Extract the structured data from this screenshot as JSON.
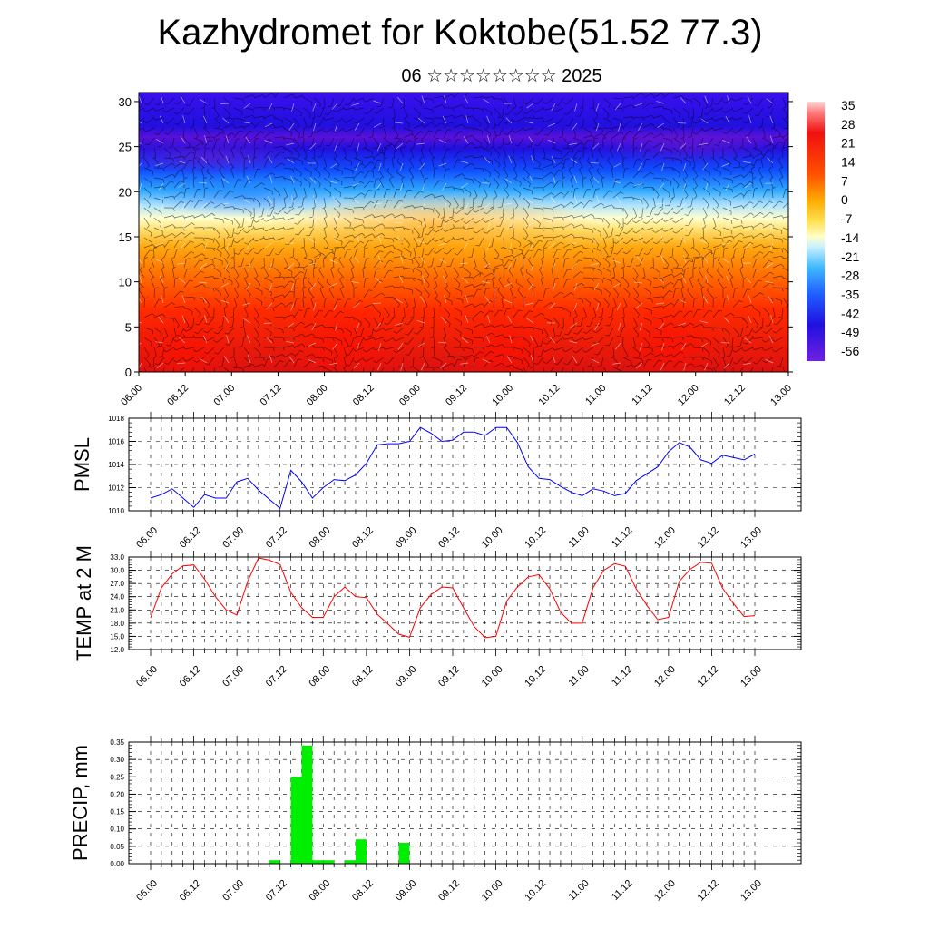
{
  "title": "Kazhydromet for Koktobe(51.52 77.3)",
  "subtitle": "06 ☆☆☆☆☆☆☆☆ 2025",
  "time_labels": [
    "06.00",
    "06.12",
    "07.00",
    "07.12",
    "08.00",
    "08.12",
    "09.00",
    "09.12",
    "10.00",
    "10.12",
    "11.00",
    "11.12",
    "12.00",
    "12.12",
    "13.00"
  ],
  "colorbar": {
    "labels": [
      "35",
      "28",
      "21",
      "14",
      "7",
      "0",
      "-7",
      "-14",
      "-21",
      "-28",
      "-35",
      "-42",
      "-49",
      "-56"
    ]
  },
  "chart_data": [
    {
      "type": "heatmap",
      "name": "cross-section",
      "y_ticks": [
        0,
        5,
        10,
        15,
        20,
        25,
        30
      ],
      "ylim": [
        0,
        31
      ],
      "x_categories": [
        "06.00",
        "06.12",
        "07.00",
        "07.12",
        "08.00",
        "08.12",
        "09.00",
        "09.12",
        "10.00",
        "10.12",
        "11.00",
        "11.12",
        "12.00",
        "12.12",
        "13.00"
      ],
      "color_scale": [
        35,
        28,
        21,
        14,
        7,
        0,
        -7,
        -14,
        -21,
        -28,
        -35,
        -42,
        -49,
        -56
      ],
      "approx_isolevel_heights": {
        "0": 16.5,
        "-14": 16,
        "-28": 20,
        "-42": 22,
        "-56": 25
      }
    },
    {
      "type": "line",
      "ylabel": "PMSL",
      "ylim": [
        1010,
        1018
      ],
      "y_ticks": [
        "1010",
        "1012",
        "1014",
        "1016",
        "1018"
      ],
      "color": "#0000ff",
      "values": [
        1011.1,
        1011.4,
        1011.9,
        1011.1,
        1010.3,
        1011.4,
        1011.1,
        1011.1,
        1012.5,
        1012.8,
        1011.8,
        1011.0,
        1010.2,
        1013.5,
        1012.5,
        1011.1,
        1012.0,
        1012.7,
        1012.6,
        1013.1,
        1014.1,
        1015.7,
        1015.8,
        1015.8,
        1016.0,
        1017.2,
        1016.7,
        1016.0,
        1016.1,
        1016.8,
        1016.8,
        1016.5,
        1017.2,
        1017.2,
        1015.9,
        1013.8,
        1012.8,
        1012.7,
        1012.1,
        1011.6,
        1011.3,
        1011.9,
        1011.7,
        1011.3,
        1011.5,
        1012.6,
        1013.2,
        1013.8,
        1015.1,
        1015.9,
        1015.5,
        1014.4,
        1014.1,
        1014.8,
        1014.6,
        1014.4,
        1014.9
      ]
    },
    {
      "type": "line",
      "ylabel": "TEMP at 2 M",
      "ylim": [
        12,
        33
      ],
      "y_ticks": [
        "12.0",
        "15.0",
        "18.0",
        "21.0",
        "24.0",
        "27.0",
        "30.0",
        "33.0"
      ],
      "color": "#ff0000",
      "values": [
        19.2,
        26.0,
        29.2,
        31.0,
        31.2,
        28.0,
        24.0,
        21.0,
        19.8,
        27.5,
        32.8,
        32.3,
        31.3,
        25.0,
        21.5,
        19.3,
        19.3,
        24.0,
        26.2,
        24.0,
        23.8,
        20.0,
        17.8,
        15.5,
        14.8,
        21.5,
        24.5,
        26.2,
        26.0,
        21.5,
        17.2,
        14.7,
        15.0,
        23.0,
        26.2,
        28.5,
        29.0,
        25.8,
        20.5,
        18.0,
        18.0,
        26.0,
        30.0,
        31.5,
        30.9,
        25.8,
        22.0,
        18.8,
        19.3,
        27.5,
        30.2,
        31.8,
        31.6,
        26.0,
        22.5,
        19.5,
        19.7
      ]
    },
    {
      "type": "bar",
      "ylabel": "PRECIP, mm",
      "ylim": [
        0,
        0.35
      ],
      "y_ticks": [
        "0.00",
        "0.05",
        "0.10",
        "0.15",
        "0.20",
        "0.25",
        "0.30",
        "0.35"
      ],
      "color": "#00ee00",
      "values": [
        0,
        0,
        0,
        0,
        0,
        0,
        0,
        0,
        0,
        0,
        0,
        0.01,
        0,
        0.25,
        0.34,
        0.01,
        0.01,
        0,
        0.01,
        0.07,
        0,
        0,
        0,
        0.06,
        0,
        0,
        0,
        0,
        0,
        0,
        0,
        0,
        0,
        0,
        0,
        0,
        0,
        0,
        0,
        0,
        0,
        0,
        0,
        0,
        0,
        0,
        0,
        0,
        0,
        0,
        0,
        0,
        0,
        0,
        0,
        0
      ]
    }
  ]
}
